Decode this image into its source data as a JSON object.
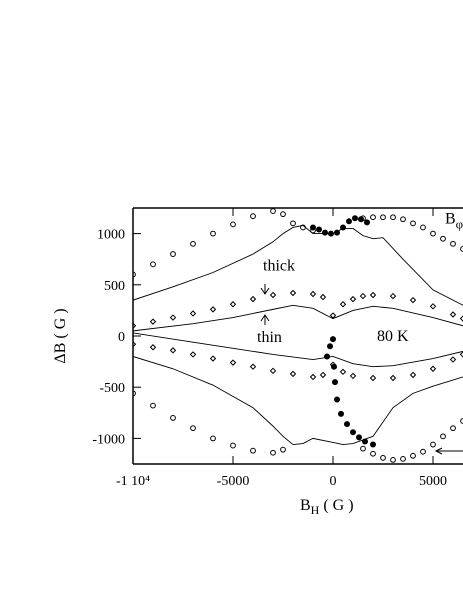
{
  "chart_data": {
    "type": "scatter",
    "x_label": {
      "text": "B",
      "sub": "H",
      "rest": " ( G )"
    },
    "y_label": "ΔB ( G )",
    "xlim": [
      -10000,
      6500
    ],
    "ylim": [
      -1250,
      1250
    ],
    "xticks": [
      {
        "value": -10000,
        "label": "-1 10⁴"
      },
      -5000,
      0,
      5000
    ],
    "yticks": [
      -1000,
      -500,
      0,
      500,
      1000
    ],
    "annotations": [
      {
        "text": "thick",
        "x": -3500,
        "y": 640
      },
      {
        "text": "thin",
        "x": -3800,
        "y": -60
      },
      {
        "text": "80 K",
        "x": 2200,
        "y": -50
      },
      {
        "text": "B",
        "sub": "φ",
        "x": 5600,
        "y": 1100
      }
    ],
    "series": [
      {
        "marker": "circle",
        "color": "#000",
        "x": [
          -10000,
          -9000,
          -8000,
          -7000,
          -6000,
          -5000,
          -4000,
          -3000,
          -2500,
          -2000,
          -1500,
          -1000
        ],
        "y": [
          600,
          700,
          800,
          900,
          1000,
          1090,
          1170,
          1220,
          1190,
          1100,
          1060,
          1030
        ]
      },
      {
        "marker": "circle",
        "color": "#000",
        "x": [
          1500,
          2000,
          2500,
          3000,
          3500,
          4000,
          4500,
          5000,
          5500,
          6000,
          6500
        ],
        "y": [
          1150,
          1160,
          1160,
          1160,
          1140,
          1100,
          1060,
          1000,
          950,
          900,
          850
        ]
      },
      {
        "marker": "circle",
        "color": "#000",
        "x": [
          -10000,
          -9000,
          -8000,
          -7000,
          -6000,
          -5000,
          -4000,
          -3000,
          -2500
        ],
        "y": [
          -560,
          -680,
          -800,
          -900,
          -1000,
          -1070,
          -1120,
          -1140,
          -1110
        ]
      },
      {
        "marker": "circle",
        "color": "#000",
        "x": [
          1500,
          2000,
          2500,
          3000,
          3500,
          4000,
          4500,
          5000,
          5500,
          6000,
          6500
        ],
        "y": [
          -1100,
          -1150,
          -1190,
          -1210,
          -1200,
          -1170,
          -1130,
          -1060,
          -980,
          -900,
          -830
        ]
      },
      {
        "marker": "diamond",
        "color": "#000",
        "x": [
          -10000,
          -9000,
          -8000,
          -7000,
          -6000,
          -5000,
          -4000,
          -3000,
          -2000,
          -1000,
          -500,
          0,
          500,
          1000,
          1500,
          2000,
          3000,
          4000,
          5000,
          6000,
          6500
        ],
        "y": [
          100,
          140,
          180,
          220,
          260,
          310,
          360,
          400,
          420,
          410,
          380,
          200,
          310,
          360,
          390,
          400,
          390,
          350,
          290,
          210,
          170
        ]
      },
      {
        "marker": "diamond",
        "color": "#000",
        "x": [
          -10000,
          -9000,
          -8000,
          -7000,
          -6000,
          -5000,
          -4000,
          -3000,
          -2000,
          -1000,
          -500,
          0,
          500,
          1000,
          2000,
          3000,
          4000,
          5000,
          6000,
          6500
        ],
        "y": [
          -80,
          -110,
          -140,
          -180,
          -220,
          -260,
          -300,
          -340,
          -370,
          -400,
          -380,
          -280,
          -350,
          -390,
          -410,
          -410,
          -380,
          -320,
          -230,
          -180
        ]
      },
      {
        "marker": "line",
        "color": "#000",
        "x": [
          -10000,
          -8000,
          -6000,
          -4000,
          -3000,
          -2500,
          -2000,
          -1500,
          -1000,
          0,
          500,
          1000,
          1500,
          2000,
          2500,
          3500,
          5000,
          6500
        ],
        "y": [
          350,
          480,
          620,
          800,
          920,
          1000,
          1060,
          1080,
          1000,
          1000,
          1050,
          1050,
          980,
          950,
          960,
          750,
          450,
          300
        ]
      },
      {
        "marker": "line",
        "color": "#000",
        "x": [
          -10000,
          -8000,
          -6000,
          -4000,
          -3000,
          -2500,
          -2000,
          -1500,
          -1000,
          0,
          500,
          1000,
          2000,
          3000,
          4000,
          5000,
          6500
        ],
        "y": [
          -200,
          -320,
          -480,
          -700,
          -880,
          -980,
          -1060,
          -1050,
          -1000,
          -1040,
          -1060,
          -1050,
          -980,
          -700,
          -560,
          -490,
          -400
        ]
      },
      {
        "marker": "line",
        "color": "#000",
        "x": [
          -10000,
          -7000,
          -5000,
          -3000,
          -2000,
          -1000,
          0,
          1000,
          2000,
          3000,
          5000,
          6500
        ],
        "y": [
          50,
          120,
          180,
          260,
          300,
          270,
          170,
          250,
          290,
          270,
          180,
          100
        ]
      },
      {
        "marker": "line",
        "color": "#000",
        "x": [
          -10000,
          -7000,
          -5000,
          -3000,
          -1000,
          0,
          1000,
          2000,
          3000,
          5000,
          6500
        ],
        "y": [
          30,
          -60,
          -120,
          -180,
          -230,
          -200,
          -270,
          -300,
          -290,
          -220,
          -150
        ]
      },
      {
        "marker": "dot",
        "color": "#000",
        "x": [
          -300,
          -150,
          0,
          50,
          100,
          200,
          400,
          700,
          1000,
          1300,
          1600,
          2000
        ],
        "y": [
          -200,
          -100,
          -30,
          -300,
          -450,
          -620,
          -760,
          -860,
          -940,
          -990,
          -1030,
          -1060
        ]
      },
      {
        "marker": "dot",
        "color": "#000",
        "x": [
          -1000,
          -700,
          -400,
          -100,
          200,
          500,
          800,
          1100,
          1400,
          1700
        ],
        "y": [
          1060,
          1040,
          1010,
          1000,
          1010,
          1060,
          1120,
          1150,
          1140,
          1110
        ]
      }
    ]
  }
}
